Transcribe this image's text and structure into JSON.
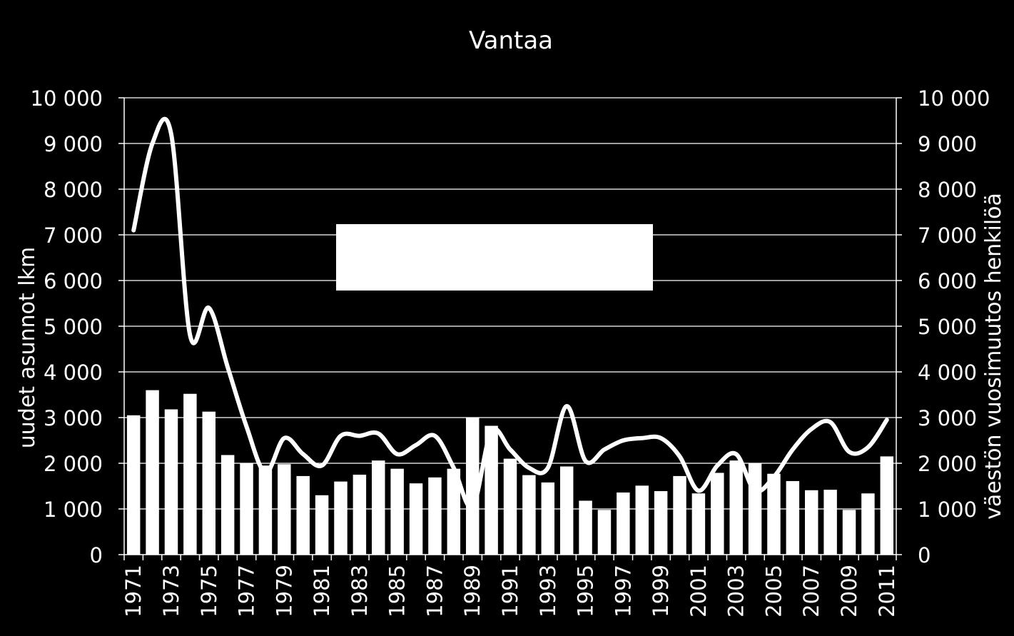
{
  "chart_data": {
    "type": "bar",
    "title": "Vantaa",
    "ylabel": "uudet asunnot lkm",
    "y2label": "väestön vuosimuutos henkilöä",
    "ylim": [
      0,
      10000
    ],
    "y2lim": [
      0,
      10000
    ],
    "yticks": [
      "0",
      "1 000",
      "2 000",
      "3 000",
      "4 000",
      "5 000",
      "6 000",
      "7 000",
      "8 000",
      "9 000",
      "10 000"
    ],
    "y2ticks": [
      "0",
      "1 000",
      "2 000",
      "3 000",
      "4 000",
      "5 000",
      "6 000",
      "7 000",
      "8 000",
      "9 000",
      "10 000"
    ],
    "grid": true,
    "categories": [
      "1971",
      "1972",
      "1973",
      "1974",
      "1975",
      "1976",
      "1977",
      "1978",
      "1979",
      "1980",
      "1981",
      "1982",
      "1983",
      "1984",
      "1985",
      "1986",
      "1987",
      "1988",
      "1989",
      "1990",
      "1991",
      "1992",
      "1993",
      "1994",
      "1995",
      "1996",
      "1997",
      "1998",
      "1999",
      "2000",
      "2001",
      "2002",
      "2003",
      "2004",
      "2005",
      "2006",
      "2007",
      "2008",
      "2009",
      "2010",
      "2011"
    ],
    "xtick_labels": [
      "1971",
      "1973",
      "1975",
      "1977",
      "1979",
      "1981",
      "1983",
      "1985",
      "1987",
      "1989",
      "1991",
      "1993",
      "1995",
      "1997",
      "1999",
      "2001",
      "2003",
      "2005",
      "2007",
      "2009",
      "2011"
    ],
    "series": [
      {
        "type": "bar",
        "axis": "left",
        "values": [
          3050,
          3600,
          3180,
          3520,
          3130,
          2180,
          2000,
          1950,
          1980,
          1720,
          1300,
          1600,
          1750,
          2060,
          1880,
          1560,
          1690,
          1880,
          3000,
          2820,
          2100,
          1740,
          1580,
          1930,
          1180,
          980,
          1360,
          1510,
          1390,
          1720,
          1340,
          1790,
          2060,
          2000,
          1770,
          1610,
          1410,
          1420,
          980,
          1340,
          2150
        ]
      },
      {
        "type": "line",
        "axis": "right",
        "values": [
          7100,
          9000,
          9200,
          4800,
          5400,
          4100,
          2800,
          1800,
          2550,
          2200,
          1950,
          2600,
          2600,
          2650,
          2200,
          2400,
          2600,
          1900,
          1050,
          2700,
          2300,
          1900,
          1900,
          3250,
          2050,
          2300,
          2500,
          2550,
          2550,
          2150,
          1400,
          1950,
          2200,
          1400,
          1700,
          2300,
          2750,
          2900,
          2250,
          2350,
          2950
        ]
      }
    ],
    "annotation_box": {
      "color": "#ffffff"
    },
    "colors": {
      "background": "#000000",
      "bars": "#ffffff",
      "line": "#ffffff",
      "gridlines": "#ffffff"
    }
  }
}
